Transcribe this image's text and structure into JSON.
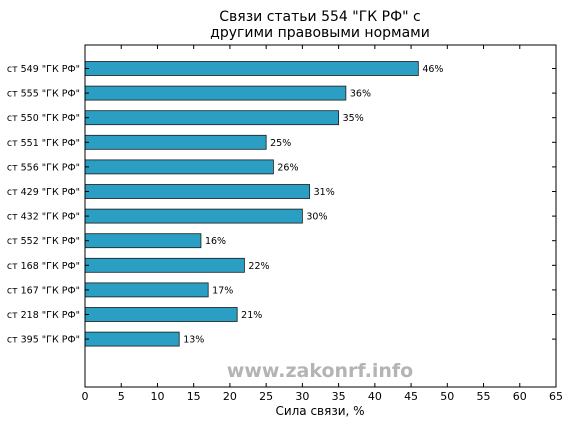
{
  "title_line_1": "Связи статьи 554 \"ГК РФ\" с",
  "title_line_2": "другими правовыми нормами",
  "watermark": "www.zakonrf.info",
  "colors": {
    "bar_fill": "#2a9fc3",
    "bar_edge": "#1b1b1b",
    "axis": "#000000",
    "background": "#ffffff"
  },
  "chart_data": {
    "type": "bar",
    "orientation": "horizontal",
    "title": "Связи статьи 554 \"ГК РФ\" с другими правовыми нормами",
    "xlabel": "Сила связи, %",
    "ylabel": "",
    "xlim": [
      0,
      65
    ],
    "xticks": [
      0,
      5,
      10,
      15,
      20,
      25,
      30,
      35,
      40,
      45,
      50,
      55,
      60,
      65
    ],
    "grid": false,
    "categories": [
      "ст 549 \"ГК РФ\"",
      "ст 555 \"ГК РФ\"",
      "ст 550 \"ГК РФ\"",
      "ст 551 \"ГК РФ\"",
      "ст 556 \"ГК РФ\"",
      "ст 429 \"ГК РФ\"",
      "ст 432 \"ГК РФ\"",
      "ст 552 \"ГК РФ\"",
      "ст 168 \"ГК РФ\"",
      "ст 167 \"ГК РФ\"",
      "ст 218 \"ГК РФ\"",
      "ст 395 \"ГК РФ\""
    ],
    "values": [
      46,
      36,
      35,
      25,
      26,
      31,
      30,
      16,
      22,
      17,
      21,
      13
    ],
    "value_labels": [
      "46%",
      "36%",
      "35%",
      "25%",
      "26%",
      "31%",
      "30%",
      "16%",
      "22%",
      "17%",
      "21%",
      "13%"
    ]
  }
}
